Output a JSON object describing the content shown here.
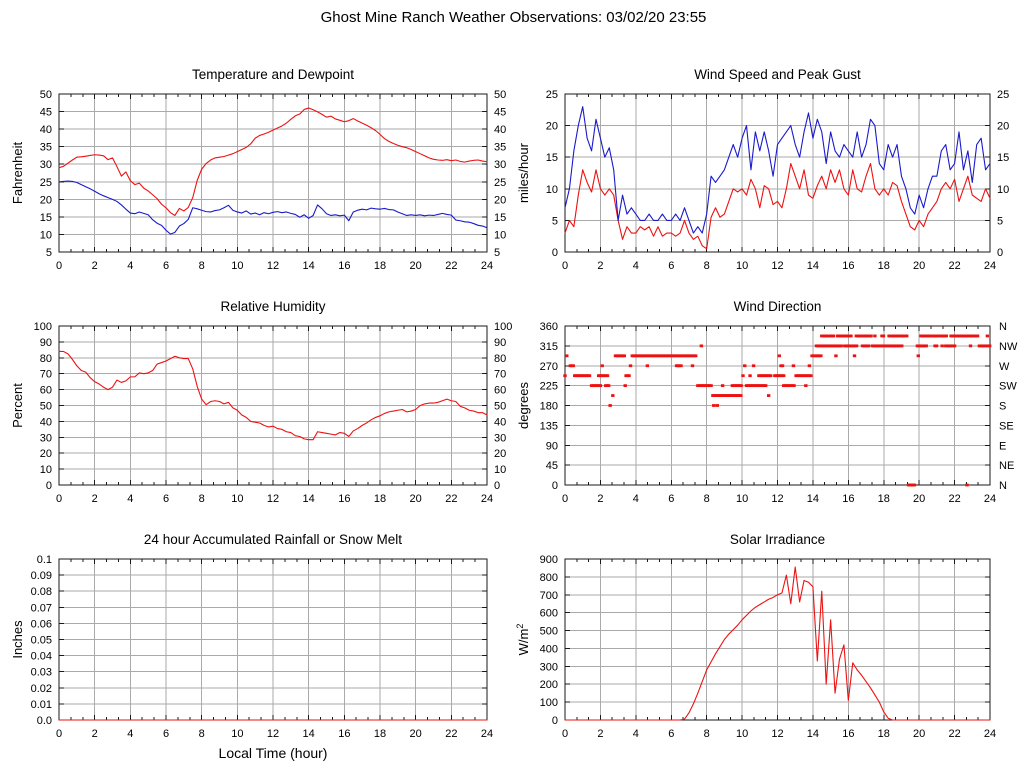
{
  "page": {
    "title": "Ghost Mine Ranch Weather Observations: 03/02/20 23:55"
  },
  "colors": {
    "line_red": "#ee1111",
    "line_blue": "#1a1acc",
    "grid": "#aaaaaa",
    "axis": "#1a1a1a",
    "text": "#000000",
    "background": "#ffffff"
  },
  "chart_data": [
    {
      "id": "temperature_dewpoint",
      "type": "line",
      "title": "Temperature and Dewpoint",
      "ylabel": "Fahrenheit",
      "xlabel": "",
      "xlim": [
        0,
        24
      ],
      "xtick_step": 2,
      "minor_xtick_step": 0.6667,
      "ylim": [
        5,
        50
      ],
      "ytick_step": 5,
      "right_tick_labels": true,
      "grid": true,
      "x_start": 0,
      "x_step": 0.25,
      "series": [
        {
          "name": "temperature",
          "color": "red",
          "values": [
            29,
            29.4,
            30.3,
            31.2,
            32,
            32.1,
            32.3,
            32.5,
            32.7,
            32.6,
            32.4,
            31.3,
            31.8,
            29.3,
            26.6,
            27.8,
            25.3,
            24.2,
            24.6,
            23.2,
            22.4,
            21.3,
            20.2,
            18.6,
            17.6,
            16.2,
            15.4,
            17.4,
            16.7,
            17.7,
            20.5,
            25.4,
            28.6,
            30.2,
            31.2,
            31.8,
            32,
            32.2,
            32.6,
            33,
            33.6,
            34.2,
            34.8,
            35.8,
            37.4,
            38.2,
            38.6,
            39.1,
            39.7,
            40.3,
            40.9,
            41.7,
            42.8,
            43.8,
            44.3,
            45.6,
            46,
            45.5,
            44.9,
            44.2,
            43.4,
            43.7,
            42.9,
            42.5,
            42.1,
            42.4,
            43,
            42.3,
            41.7,
            41.1,
            40.4,
            39.6,
            38.5,
            37.3,
            36.5,
            35.9,
            35.4,
            35,
            34.7,
            34.2,
            33.6,
            33,
            32.4,
            31.8,
            31.4,
            31.2,
            31.1,
            31.3,
            31,
            31.2,
            30.8,
            30.6,
            30.9,
            31.1,
            31.2,
            30.9,
            30.7
          ]
        },
        {
          "name": "dewpoint",
          "color": "blue",
          "values": [
            25,
            25.1,
            25.2,
            25.1,
            24.8,
            24.2,
            23.6,
            23,
            22.3,
            21.6,
            21,
            20.5,
            20,
            19.4,
            18.4,
            17.2,
            16.1,
            15.9,
            16.4,
            16,
            15.6,
            14.2,
            13.2,
            12.6,
            11.2,
            10.1,
            10.6,
            12.4,
            13.1,
            14.3,
            17.6,
            17.3,
            16.9,
            16.5,
            16.4,
            16.8,
            17,
            17.6,
            18.3,
            16.9,
            16.4,
            16.1,
            16.7,
            15.8,
            16.1,
            15.6,
            16.2,
            15.9,
            16.3,
            16.5,
            16.2,
            16.4,
            16,
            15.7,
            14.9,
            15.6,
            14.6,
            15.4,
            18.4,
            17.3,
            15.9,
            15.4,
            15.6,
            15.3,
            15.5,
            13.9,
            16.4,
            16.9,
            17.2,
            17,
            17.5,
            17.3,
            17.2,
            17.4,
            17.1,
            17,
            16.4,
            15.9,
            15.4,
            15.6,
            15.4,
            15.6,
            15.3,
            15.5,
            15.4,
            15.7,
            16,
            15.7,
            15.5,
            14.1,
            13.9,
            13.6,
            13.5,
            13.1,
            12.6,
            12.4,
            11.9
          ]
        }
      ]
    },
    {
      "id": "wind_speed_peak_gust",
      "type": "line",
      "title": "Wind Speed and Peak Gust",
      "ylabel": "miles/hour",
      "xlabel": "",
      "xlim": [
        0,
        24
      ],
      "xtick_step": 2,
      "minor_xtick_step": 0.6667,
      "ylim": [
        0,
        25
      ],
      "ytick_step": 5,
      "right_tick_labels": true,
      "grid": true,
      "x_start": 0,
      "x_step": 0.25,
      "series": [
        {
          "name": "wind_speed",
          "color": "red",
          "values": [
            3,
            5,
            4,
            9,
            13,
            11,
            9.5,
            13,
            10,
            9,
            10,
            9,
            5,
            2,
            4,
            3,
            3,
            4,
            3.5,
            4,
            2.5,
            4,
            2.5,
            3,
            3,
            2.5,
            3,
            5,
            3,
            2,
            2.5,
            1,
            0.5,
            5.5,
            7,
            5.5,
            6,
            8,
            10,
            9.5,
            10,
            9,
            11.5,
            10,
            7,
            10.5,
            10,
            7.5,
            8,
            7,
            10,
            14,
            12,
            10,
            13,
            9,
            8.5,
            10.5,
            12,
            10,
            13,
            11,
            13,
            10,
            9,
            13,
            10,
            9.5,
            12,
            14,
            10,
            9,
            10,
            9,
            11,
            10.5,
            8,
            6,
            4,
            3.5,
            5,
            4,
            6,
            7,
            8,
            10,
            11,
            10,
            11.5,
            8,
            10,
            12,
            9,
            8.5,
            8,
            10,
            8.5
          ]
        },
        {
          "name": "peak_gust",
          "color": "blue",
          "values": [
            7,
            10,
            16,
            20,
            23,
            18,
            16,
            21,
            18,
            15,
            16.5,
            13,
            5,
            9,
            6,
            7,
            6,
            5,
            5,
            6,
            5,
            5,
            6,
            5,
            5,
            6,
            5,
            7,
            5,
            3,
            4,
            3,
            6,
            12,
            11,
            12,
            13,
            15,
            17,
            15,
            18,
            20,
            13,
            19,
            16,
            19,
            16,
            12,
            17,
            18,
            19,
            20,
            17,
            15,
            19,
            22,
            18,
            21,
            19,
            14,
            19,
            16,
            15,
            17,
            16,
            15,
            19,
            15,
            17,
            21,
            20,
            14,
            13,
            17,
            15,
            17,
            12,
            10,
            7,
            6,
            9,
            7,
            10,
            12,
            12,
            16,
            17,
            13,
            14,
            19,
            13,
            16,
            11,
            17,
            18,
            13,
            14
          ]
        }
      ]
    },
    {
      "id": "relative_humidity",
      "type": "line",
      "title": "Relative Humidity",
      "ylabel": "Percent",
      "xlabel": "",
      "xlim": [
        0,
        24
      ],
      "xtick_step": 2,
      "minor_xtick_step": 0.6667,
      "ylim": [
        0,
        100
      ],
      "ytick_step": 10,
      "right_tick_labels": true,
      "grid": true,
      "x_start": 0,
      "x_step": 0.25,
      "series": [
        {
          "name": "relative_humidity",
          "color": "red",
          "values": [
            84,
            84,
            82.5,
            79,
            75,
            72,
            71,
            67.5,
            65,
            63.5,
            61.5,
            60,
            61.5,
            66,
            64.5,
            65.5,
            68,
            68,
            70.5,
            70,
            70.5,
            72,
            76,
            77,
            78,
            79.5,
            81,
            80,
            79.5,
            79.5,
            73,
            62,
            54,
            50.5,
            52.5,
            53,
            52.5,
            51,
            52,
            48.5,
            47,
            44,
            42.5,
            40,
            39.5,
            39,
            37.5,
            36.5,
            37,
            35.5,
            35,
            33.5,
            33,
            31,
            30.5,
            29,
            28.5,
            28.5,
            33.5,
            33,
            32.5,
            32,
            31.5,
            33,
            32.5,
            30.5,
            34,
            35.5,
            37.5,
            39,
            41,
            42.5,
            43.5,
            45,
            46,
            46.5,
            47,
            47.5,
            46,
            46.5,
            47.5,
            50,
            51,
            51.5,
            51.5,
            52,
            53,
            54,
            53,
            52.5,
            49.5,
            48.5,
            47,
            46.5,
            45.5,
            45.5,
            44
          ]
        }
      ]
    },
    {
      "id": "wind_direction",
      "type": "scatter",
      "title": "Wind Direction",
      "ylabel": "degrees",
      "xlabel": "",
      "xlim": [
        0,
        24
      ],
      "xtick_step": 2,
      "minor_xtick_step": 0.6667,
      "ylim": [
        0,
        360
      ],
      "ytick_step": 45,
      "right_direction_labels": [
        "N",
        "NE",
        "E",
        "SE",
        "S",
        "SW",
        "W",
        "NW",
        "N"
      ],
      "grid": true,
      "sample_step_hours": 0.0833,
      "runs": [
        [
          247.5,
          0,
          0.05
        ],
        [
          292.5,
          0.1,
          0.1
        ],
        [
          270,
          0.3,
          0.5
        ],
        [
          247.5,
          0.55,
          1.4
        ],
        [
          225,
          1.5,
          2
        ],
        [
          247.5,
          1.9,
          2.45
        ],
        [
          270,
          2.1,
          2.1
        ],
        [
          225,
          2.3,
          2.5
        ],
        [
          180,
          2.55,
          2.55
        ],
        [
          202.5,
          2.7,
          2.7
        ],
        [
          292.5,
          2.85,
          3.35
        ],
        [
          225,
          3.4,
          3.45
        ],
        [
          247.5,
          3.45,
          3.65
        ],
        [
          270,
          3.7,
          3.7
        ],
        [
          292.5,
          3.8,
          7.45
        ],
        [
          270,
          4.65,
          4.65
        ],
        [
          270,
          6.3,
          6.55
        ],
        [
          270,
          7.2,
          7.25
        ],
        [
          225,
          7.5,
          8.3
        ],
        [
          315,
          7.7,
          7.7
        ],
        [
          202.5,
          8.35,
          9.95
        ],
        [
          180,
          8.4,
          8.45
        ],
        [
          180,
          8.6,
          8.6
        ],
        [
          225,
          8.9,
          8.95
        ],
        [
          225,
          9.45,
          9.95
        ],
        [
          247.5,
          10.05,
          10.1
        ],
        [
          270,
          10.15,
          10.2
        ],
        [
          225,
          10.25,
          11.35
        ],
        [
          247.5,
          10.45,
          10.5
        ],
        [
          270,
          10.65,
          10.7
        ],
        [
          247.5,
          10.95,
          11.65
        ],
        [
          202.5,
          11.5,
          11.55
        ],
        [
          247.5,
          11.85,
          12.4
        ],
        [
          292.5,
          12.1,
          12.1
        ],
        [
          270,
          12.2,
          12.3
        ],
        [
          225,
          12.35,
          13
        ],
        [
          270,
          12.9,
          12.9
        ],
        [
          247.5,
          13.05,
          13.9
        ],
        [
          225,
          13.6,
          13.65
        ],
        [
          270,
          13.8,
          13.85
        ],
        [
          292.5,
          13.95,
          14.45
        ],
        [
          315,
          14.2,
          14.55
        ],
        [
          337.5,
          14.5,
          15.2
        ],
        [
          315,
          14.6,
          15.6
        ],
        [
          292.5,
          15.3,
          15.3
        ],
        [
          337.5,
          15.4,
          16.2
        ],
        [
          315,
          15.8,
          16.5
        ],
        [
          292.5,
          16.35,
          16.35
        ],
        [
          337.5,
          16.45,
          17.3
        ],
        [
          315,
          16.8,
          17.15
        ],
        [
          315,
          17.35,
          19.05
        ],
        [
          337.5,
          17.5,
          17.55
        ],
        [
          337.5,
          17.9,
          18
        ],
        [
          337.5,
          18.3,
          19.3
        ],
        [
          0,
          19.4,
          19.75
        ],
        [
          315,
          19.9,
          20.4
        ],
        [
          292.5,
          19.95,
          19.95
        ],
        [
          337.5,
          20.1,
          20.65
        ],
        [
          337.5,
          20.7,
          21.6
        ],
        [
          315,
          20.9,
          21
        ],
        [
          315,
          21.3,
          21.35
        ],
        [
          315,
          21.5,
          22
        ],
        [
          337.5,
          21.8,
          22.5
        ],
        [
          0,
          22.7,
          22.75
        ],
        [
          337.5,
          22.55,
          23.3
        ],
        [
          315,
          22.9,
          22.95
        ],
        [
          315,
          23.4,
          24
        ],
        [
          337.5,
          23.85,
          23.9
        ]
      ]
    },
    {
      "id": "rainfall",
      "type": "line",
      "title": "24 hour Accumulated Rainfall or Snow Melt",
      "ylabel": "Inches",
      "xlabel": "Local Time (hour)",
      "xlim": [
        0,
        24
      ],
      "xtick_step": 2,
      "minor_xtick_step": 0.6667,
      "ylim": [
        0,
        0.1
      ],
      "ytick_step": 0.01,
      "ytick_labels": [
        "0.0",
        "0.01",
        "0.02",
        "0.03",
        "0.04",
        "0.05",
        "0.06",
        "0.07",
        "0.08",
        "0.09",
        "0.1"
      ],
      "right_tick_labels": false,
      "grid": true,
      "series": [
        {
          "name": "rainfall",
          "color": "red",
          "x": [
            0,
            24
          ],
          "values": [
            0,
            0
          ]
        }
      ]
    },
    {
      "id": "solar_irradiance",
      "type": "line",
      "title": "Solar Irradiance",
      "ylabel": "W/m^2",
      "xlabel": "",
      "xlim": [
        0,
        24
      ],
      "xtick_step": 2,
      "minor_xtick_step": 0.6667,
      "ylim": [
        0,
        900
      ],
      "ytick_step": 100,
      "right_tick_labels": false,
      "grid": true,
      "x_start": 0,
      "x_step": 0.25,
      "series": [
        {
          "name": "solar_irradiance",
          "color": "red",
          "values": [
            0,
            0,
            0,
            0,
            0,
            0,
            0,
            0,
            0,
            0,
            0,
            0,
            0,
            0,
            0,
            0,
            0,
            0,
            0,
            0,
            0,
            0,
            0,
            0,
            0,
            0,
            0,
            5,
            40,
            90,
            150,
            215,
            280,
            325,
            370,
            410,
            450,
            480,
            505,
            530,
            560,
            585,
            610,
            630,
            645,
            660,
            675,
            685,
            700,
            710,
            810,
            650,
            855,
            660,
            780,
            770,
            745,
            330,
            720,
            200,
            560,
            150,
            340,
            420,
            110,
            320,
            280,
            250,
            215,
            180,
            140,
            100,
            45,
            10,
            0,
            0,
            0,
            0,
            0,
            0,
            0,
            0,
            0,
            0,
            0,
            0,
            0,
            0,
            0,
            0,
            0,
            0,
            0,
            0,
            0,
            0,
            0
          ]
        }
      ]
    }
  ]
}
